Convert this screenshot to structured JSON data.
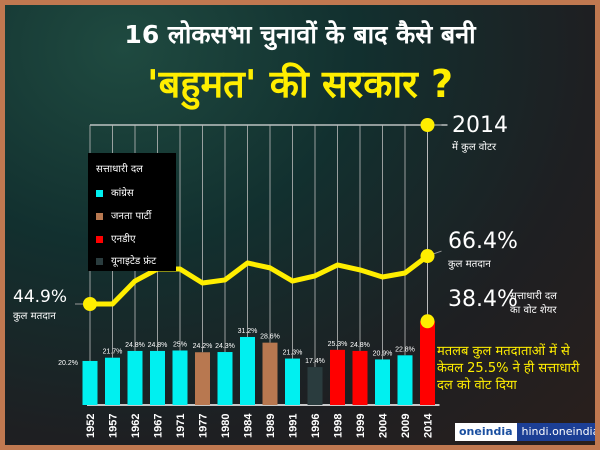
{
  "title_line1": "16 लोकसभा चुनावों के बाद कैसे बनी",
  "title_line2": "'बहुमत' की सरकार ?",
  "legend": {
    "title": "सत्ताधारी दल",
    "items": [
      {
        "label": "कांग्रेस",
        "color": "#00f0f0"
      },
      {
        "label": "जनता पार्टी",
        "color": "#b87850"
      },
      {
        "label": "एनडीए",
        "color": "#ff0000"
      },
      {
        "label": "यूनाइटेड फ्रंट",
        "color": "#2a3c3e"
      }
    ]
  },
  "annotations": {
    "voters_year": "2014",
    "voters_label": "में कुल वोटर",
    "turnout_end_value": "66.4%",
    "turnout_end_label": "कुल मतदान",
    "turnout_start_value": "44.9%",
    "turnout_start_label": "कुल मतदान",
    "share_value": "38.4%",
    "share_label_1": "सत्ताधारी दल",
    "share_label_2": "का वोट शेयर",
    "note": "मतलब कुल मतदाताओं में से केवल 25.5% ने ही सत्ताधारी दल को वोट दिया"
  },
  "logo": {
    "brand": "oneindia",
    "site": "hindi.oneindia.com"
  },
  "chart_data": {
    "type": "bar",
    "categories": [
      "1952",
      "1957",
      "1962",
      "1967",
      "1971",
      "1977",
      "1980",
      "1984",
      "1989",
      "1991",
      "1996",
      "1998",
      "1999",
      "2004",
      "2009",
      "2014"
    ],
    "series": [
      {
        "values": [
          20.2,
          21.7,
          24.8,
          24.8,
          25,
          24.2,
          24.3,
          31.2,
          28.6,
          21.3,
          17.4,
          25.3,
          24.8,
          20.9,
          22.8,
          38.4
        ],
        "labels": [
          "20.2%",
          "21.7%",
          "24.8%",
          "24.8%",
          "25%",
          "24.2%",
          "24.3%",
          "31.2%",
          "28.6%",
          "21.3%",
          "17.4%",
          "25.3%",
          "24.8%",
          "20.9%",
          "22.8%",
          ""
        ],
        "parties": [
          "कांग्रेस",
          "कांग्रेस",
          "कांग्रेस",
          "कांग्रेस",
          "कांग्रेस",
          "जनता पार्टी",
          "कांग्रेस",
          "कांग्रेस",
          "जनता पार्टी",
          "कांग्रेस",
          "यूनाइटेड फ्रंट",
          "एनडीए",
          "एनडीए",
          "कांग्रेस",
          "कांग्रेस",
          "एनडीए"
        ]
      },
      {
        "type": "line",
        "color": "#ffee00",
        "values": [
          44.9,
          44.9,
          55.2,
          60.6,
          60.6,
          54.3,
          55.7,
          63.3,
          61.1,
          55.2,
          57.5,
          62.4,
          60.2,
          57.0,
          58.8,
          66.4
        ]
      }
    ],
    "grid": true
  }
}
